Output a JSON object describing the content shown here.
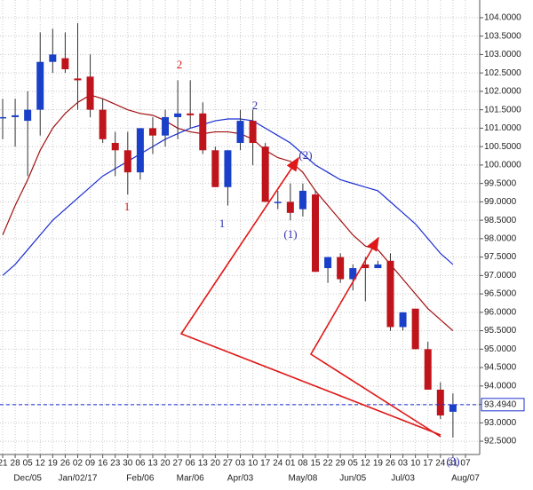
{
  "chart_data": {
    "type": "candlestick",
    "categories": [
      "21",
      "28",
      "05",
      "12",
      "19",
      "26",
      "02",
      "09",
      "16",
      "23",
      "30",
      "06",
      "13",
      "20",
      "27",
      "06",
      "13",
      "20",
      "27",
      "03",
      "10",
      "17",
      "24",
      "01",
      "08",
      "15",
      "22",
      "29",
      "05",
      "12",
      "19",
      "26",
      "03",
      "10",
      "17",
      "24",
      "31",
      "07"
    ],
    "month_categories": [
      null,
      null,
      "Dec/05",
      null,
      null,
      null,
      "Jan/02/17",
      null,
      null,
      null,
      null,
      "Feb/06",
      null,
      null,
      null,
      "Mar/06",
      null,
      null,
      null,
      "Apr/03",
      null,
      null,
      null,
      null,
      "May/08",
      null,
      null,
      null,
      "Jun/05",
      null,
      null,
      null,
      "Jul/03",
      null,
      null,
      null,
      null,
      "Aug/07"
    ],
    "open": [
      101.3,
      101.3,
      101.2,
      101.5,
      102.8,
      102.9,
      102.35,
      102.4,
      101.5,
      100.6,
      100.4,
      99.8,
      101.0,
      100.8,
      101.3,
      101.4,
      101.4,
      100.4,
      99.4,
      100.6,
      101.2,
      100.5,
      99.0,
      99.0,
      98.8,
      99.2,
      97.2,
      97.5,
      96.9,
      97.3,
      97.2,
      97.4,
      95.6,
      96.1,
      95.0,
      93.9,
      93.3,
      null
    ],
    "high": [
      101.8,
      101.8,
      102.0,
      103.6,
      103.7,
      103.6,
      103.85,
      103.0,
      101.8,
      100.9,
      100.9,
      101.0,
      101.3,
      101.5,
      102.3,
      102.3,
      101.7,
      100.5,
      100.4,
      101.5,
      101.5,
      100.6,
      99.3,
      99.5,
      99.5,
      99.3,
      97.5,
      97.6,
      97.3,
      97.5,
      97.4,
      97.6,
      96.0,
      96.1,
      95.2,
      94.1,
      93.8,
      null
    ],
    "low": [
      100.7,
      100.5,
      99.7,
      100.8,
      102.5,
      102.5,
      101.5,
      101.3,
      100.6,
      99.7,
      99.2,
      99.6,
      100.3,
      100.5,
      100.7,
      101.0,
      100.3,
      99.4,
      98.9,
      100.4,
      100.0,
      99.0,
      98.8,
      98.5,
      98.6,
      97.1,
      96.8,
      96.8,
      96.6,
      96.3,
      97.2,
      95.5,
      95.5,
      95.0,
      93.9,
      93.1,
      92.6,
      null
    ],
    "close": [
      101.3,
      101.35,
      101.5,
      102.8,
      103.0,
      102.6,
      102.3,
      101.5,
      100.7,
      100.4,
      99.8,
      101.0,
      100.8,
      101.3,
      101.4,
      101.35,
      100.4,
      99.4,
      100.4,
      101.2,
      100.6,
      99.0,
      99.0,
      98.7,
      99.3,
      97.1,
      97.5,
      96.9,
      97.2,
      97.2,
      97.3,
      95.6,
      96.0,
      95.0,
      93.9,
      93.2,
      93.5,
      null
    ],
    "up_color": "#1a3fc8",
    "down_color": "#c0141c",
    "moving_averages": [
      {
        "color": "#a01010",
        "values": [
          98.1,
          98.9,
          99.6,
          100.4,
          101.0,
          101.4,
          101.7,
          101.9,
          101.8,
          101.65,
          101.5,
          101.4,
          101.35,
          101.2,
          101.0,
          100.9,
          100.85,
          100.9,
          100.9,
          100.85,
          100.7,
          100.4,
          100.2,
          100.1,
          99.8,
          99.3,
          98.9,
          98.5,
          98.1,
          97.8,
          97.7,
          97.3,
          96.9,
          96.5,
          96.1,
          95.8,
          95.5,
          null
        ]
      },
      {
        "color": "#1a2fd0",
        "values": [
          97.0,
          97.3,
          97.7,
          98.1,
          98.5,
          98.8,
          99.1,
          99.4,
          99.7,
          99.9,
          100.1,
          100.3,
          100.5,
          100.7,
          100.85,
          101.0,
          101.1,
          101.2,
          101.25,
          101.25,
          101.2,
          101.0,
          100.8,
          100.6,
          100.3,
          100.0,
          99.8,
          99.6,
          99.5,
          99.4,
          99.3,
          99.0,
          98.7,
          98.4,
          98.0,
          97.6,
          97.3,
          null
        ]
      }
    ],
    "last_price": 93.494,
    "last_price_label": "93.4940",
    "ylim": [
      92.14,
      104.48
    ],
    "yticks": [
      {
        "value": 92.5,
        "label": "92.5000"
      },
      {
        "value": 93.0,
        "label": "93.0000"
      },
      {
        "value": 93.5,
        "label": "93.5000"
      },
      {
        "value": 94.0,
        "label": "94.0000"
      },
      {
        "value": 94.5,
        "label": "94.5000"
      },
      {
        "value": 95.0,
        "label": "95.0000"
      },
      {
        "value": 95.5,
        "label": "95.5000"
      },
      {
        "value": 96.0,
        "label": "96.0000"
      },
      {
        "value": 96.5,
        "label": "96.5000"
      },
      {
        "value": 97.0,
        "label": "97.0000"
      },
      {
        "value": 97.5,
        "label": "97.5000"
      },
      {
        "value": 98.0,
        "label": "98.0000"
      },
      {
        "value": 98.5,
        "label": "98.5000"
      },
      {
        "value": 99.0,
        "label": "99.0000"
      },
      {
        "value": 99.5,
        "label": "99.5000"
      },
      {
        "value": 100.0,
        "label": "100.0000"
      },
      {
        "value": 100.5,
        "label": "100.5000"
      },
      {
        "value": 101.0,
        "label": "101.0000"
      },
      {
        "value": 101.5,
        "label": "101.5000"
      },
      {
        "value": 102.0,
        "label": "102.0000"
      },
      {
        "value": 102.5,
        "label": "102.5000"
      },
      {
        "value": 103.0,
        "label": "103.0000"
      },
      {
        "value": 103.5,
        "label": "103.5000"
      },
      {
        "value": 104.0,
        "label": "104.0000"
      }
    ],
    "grid": true,
    "annotations": [
      {
        "text": "2",
        "color": "#d02020"
      },
      {
        "text": "1",
        "color": "#d02020"
      },
      {
        "text": "1",
        "color": "#3030b0"
      },
      {
        "text": "2",
        "color": "#3030b0"
      },
      {
        "text": "(2)",
        "color": "#3030b0"
      },
      {
        "text": "(1)",
        "color": "#3030b0"
      },
      {
        "text": "(3)",
        "color": "#3030b0"
      }
    ]
  }
}
